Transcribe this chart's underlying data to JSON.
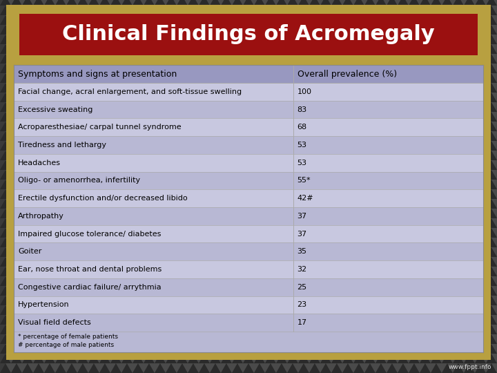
{
  "title": "Clinical Findings of Acromegaly",
  "col1_header": "Symptoms and signs at presentation",
  "col2_header": "Overall prevalence (%)",
  "rows": [
    [
      "Facial change, acral enlargement, and soft-tissue swelling",
      "100"
    ],
    [
      "Excessive sweating",
      "83"
    ],
    [
      "Acroparesthesiae/ carpal tunnel syndrome",
      "68"
    ],
    [
      "Tiredness and lethargy",
      "53"
    ],
    [
      "Headaches",
      "53"
    ],
    [
      "Oligo- or amenorrhea, infertility",
      "55*"
    ],
    [
      "Erectile dysfunction and/or decreased libido",
      "42#"
    ],
    [
      "Arthropathy",
      "37"
    ],
    [
      "Impaired glucose tolerance/ diabetes",
      "37"
    ],
    [
      "Goiter",
      "35"
    ],
    [
      "Ear, nose throat and dental problems",
      "32"
    ],
    [
      "Congestive cardiac failure/ arrythmia",
      "25"
    ],
    [
      "Hypertension",
      "23"
    ],
    [
      "Visual field defects",
      "17"
    ]
  ],
  "footnotes": [
    "* percentage of female patients",
    "# percentage of male patients"
  ],
  "bg_color": "#3a3a3a",
  "tri_dark": "#2a2a2a",
  "tri_light": "#4a4a4a",
  "title_bg": "#9B1010",
  "title_fg": "#ffffff",
  "title_border_outer": "#C8B860",
  "title_border_inner": "#E8D898",
  "table_bg_even": "#c8c8e0",
  "table_bg_odd": "#b8b8d4",
  "header_bg": "#9898c0",
  "table_border_color": "#aaaaaa",
  "outer_border": "#C8B860",
  "watermark": "www.fppt.info",
  "col_split": 0.595,
  "title_fontsize": 22,
  "header_fontsize": 9,
  "row_fontsize": 8,
  "footnote_fontsize": 6.5
}
